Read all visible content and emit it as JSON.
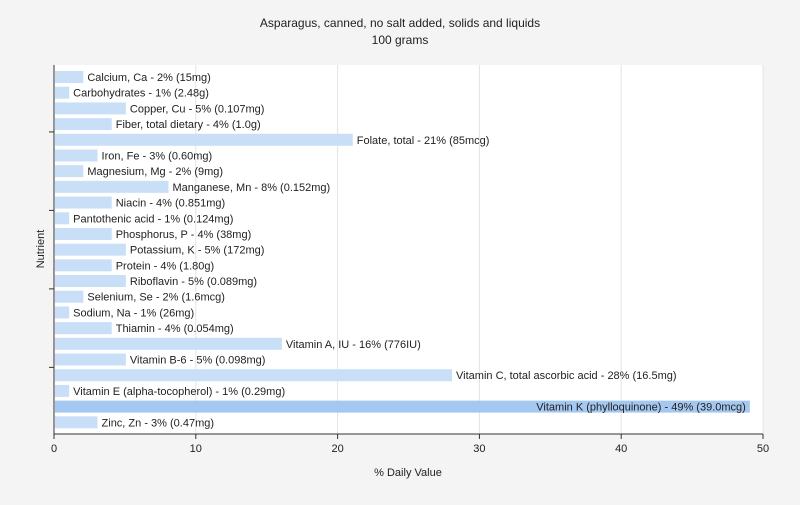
{
  "chart_data": {
    "type": "bar",
    "orientation": "horizontal",
    "title": "Asparagus, canned, no salt added, solids and liquids",
    "subtitle": "100 grams",
    "xlabel": "% Daily Value",
    "ylabel": "Nutrient",
    "xlim": [
      0,
      50
    ],
    "xticks": [
      0,
      10,
      20,
      30,
      40,
      50
    ],
    "grid": true,
    "bar_color": "#c9dff8",
    "bar_color_highlight": "#a5c8f0",
    "categories": [
      "Calcium, Ca - 2% (15mg)",
      "Carbohydrates - 1% (2.48g)",
      "Copper, Cu - 5% (0.107mg)",
      "Fiber, total dietary - 4% (1.0g)",
      "Folate, total - 21% (85mcg)",
      "Iron, Fe - 3% (0.60mg)",
      "Magnesium, Mg - 2% (9mg)",
      "Manganese, Mn - 8% (0.152mg)",
      "Niacin - 4% (0.851mg)",
      "Pantothenic acid - 1% (0.124mg)",
      "Phosphorus, P - 4% (38mg)",
      "Potassium, K - 5% (172mg)",
      "Protein - 4% (1.80g)",
      "Riboflavin - 5% (0.089mg)",
      "Selenium, Se - 2% (1.6mcg)",
      "Sodium, Na - 1% (26mg)",
      "Thiamin - 4% (0.054mg)",
      "Vitamin A, IU - 16% (776IU)",
      "Vitamin B-6 - 5% (0.098mg)",
      "Vitamin C, total ascorbic acid - 28% (16.5mg)",
      "Vitamin E (alpha-tocopherol) - 1% (0.29mg)",
      "Vitamin K (phylloquinone) - 49% (39.0mcg)",
      "Zinc, Zn - 3% (0.47mg)"
    ],
    "values": [
      2,
      1,
      5,
      4,
      21,
      3,
      2,
      8,
      4,
      1,
      4,
      5,
      4,
      5,
      2,
      1,
      4,
      16,
      5,
      28,
      1,
      49,
      3
    ]
  }
}
